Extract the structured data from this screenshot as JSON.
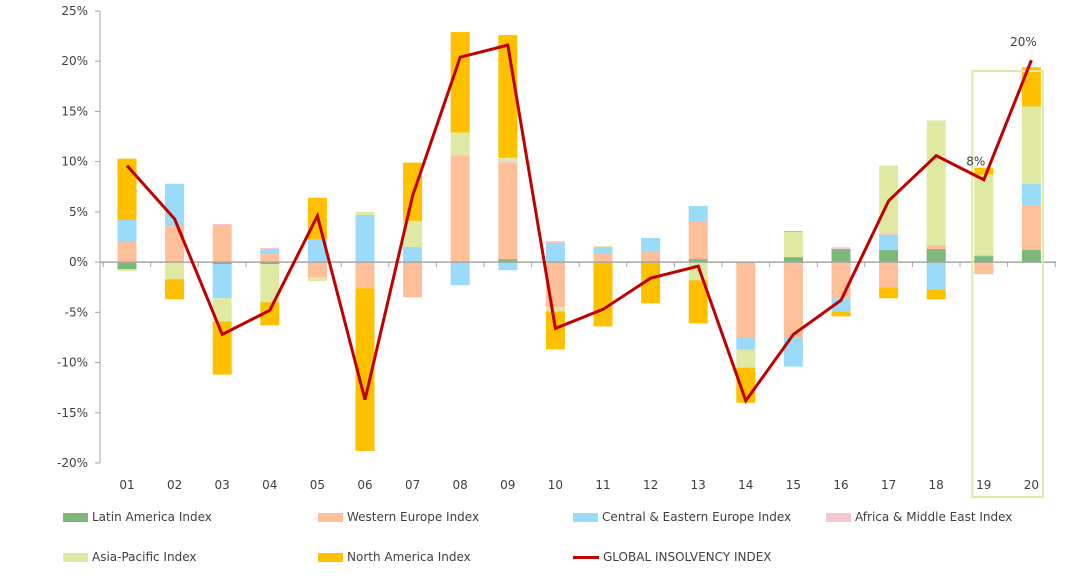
{
  "chart_data": {
    "type": "bar",
    "stacked": true,
    "title": "",
    "xlabel": "",
    "ylabel": "",
    "ylim": [
      -20,
      25
    ],
    "yticks": [
      "25%",
      "20%",
      "15%",
      "10%",
      "5%",
      "0%",
      "-5%",
      "-10%",
      "-15%",
      "-20%"
    ],
    "ytick_values": [
      25,
      20,
      15,
      10,
      5,
      0,
      -5,
      -10,
      -15,
      -20
    ],
    "grid": false,
    "legend_position": "bottom",
    "categories": [
      "01",
      "02",
      "03",
      "04",
      "05",
      "06",
      "07",
      "08",
      "09",
      "10",
      "11",
      "12",
      "13",
      "14",
      "15",
      "16",
      "17",
      "18",
      "19",
      "20"
    ],
    "series": [
      {
        "name": "Latin America Index",
        "color": "#7db87a",
        "values": [
          -0.7,
          0,
          -0.2,
          -0.2,
          0,
          0,
          0,
          0,
          0.3,
          0,
          0,
          0.1,
          0.3,
          0,
          0.5,
          1.3,
          1.2,
          1.3,
          0.6,
          1.2
        ]
      },
      {
        "name": "Western Europe Index",
        "color": "#ffbf99",
        "values": [
          2.0,
          3.6,
          3.7,
          0.8,
          -1.5,
          -2.6,
          -3.5,
          10.6,
          9.6,
          -4.5,
          0.8,
          0.9,
          3.7,
          -7.5,
          -7.5,
          -3.6,
          -2.5,
          0.4,
          -1.2,
          4.5
        ]
      },
      {
        "name": "Central & Eastern Europe Index",
        "color": "#99dbf8",
        "values": [
          2.2,
          4.2,
          -3.4,
          0.5,
          2.3,
          4.7,
          1.5,
          -2.3,
          -0.8,
          1.9,
          0.7,
          1.4,
          1.6,
          -1.2,
          -2.9,
          -1.3,
          1.5,
          -2.7,
          0.1,
          2.1
        ]
      },
      {
        "name": "Africa & Middle East Index",
        "color": "#f4c7d3",
        "values": [
          0,
          0,
          0.1,
          0.1,
          -0.1,
          0,
          0,
          0.1,
          0.2,
          0.2,
          0,
          0,
          0,
          0,
          0,
          0.1,
          0.1,
          0,
          0,
          0.1
        ]
      },
      {
        "name": "Asia-Pacific Index",
        "color": "#e0e9a1",
        "values": [
          -0.2,
          -1.7,
          -2.3,
          -3.8,
          -0.3,
          0.3,
          2.6,
          2.2,
          0.3,
          -0.4,
          0.1,
          0,
          -1.8,
          -1.8,
          2.5,
          0.1,
          6.8,
          12.4,
          8.0,
          7.6
        ]
      },
      {
        "name": "North America Index",
        "color": "#ffc000",
        "values": [
          6.1,
          -2.0,
          -5.3,
          -2.3,
          4.1,
          -16.2,
          5.8,
          10.0,
          12.2,
          -3.8,
          -6.4,
          -4.1,
          -4.3,
          -3.5,
          0.1,
          -0.5,
          -1.1,
          -1.0,
          0.7,
          3.9
        ]
      }
    ],
    "line": {
      "name": "GLOBAL INSOLVENCY INDEX",
      "color": "#c00000",
      "values": [
        9.6,
        4.3,
        -7.2,
        -4.8,
        4.6,
        -13.7,
        6.6,
        20.4,
        21.6,
        -6.6,
        -4.7,
        -1.6,
        -0.4,
        -13.8,
        -7.2,
        -3.8,
        6.1,
        10.6,
        8.2,
        20.1
      ]
    },
    "annotations": [
      {
        "category": "19",
        "text": "8%"
      },
      {
        "category": "20",
        "text": "20%"
      }
    ],
    "highlight": {
      "categories": [
        "19",
        "20"
      ],
      "color": "#dce9a8"
    }
  },
  "legend": {
    "latin": "Latin America Index",
    "western": "Western Europe Index",
    "cee": "Central & Eastern Europe Index",
    "africa": "Africa & Middle East Index",
    "asia": "Asia-Pacific Index",
    "na": "North America Index",
    "global": "GLOBAL INSOLVENCY INDEX"
  }
}
